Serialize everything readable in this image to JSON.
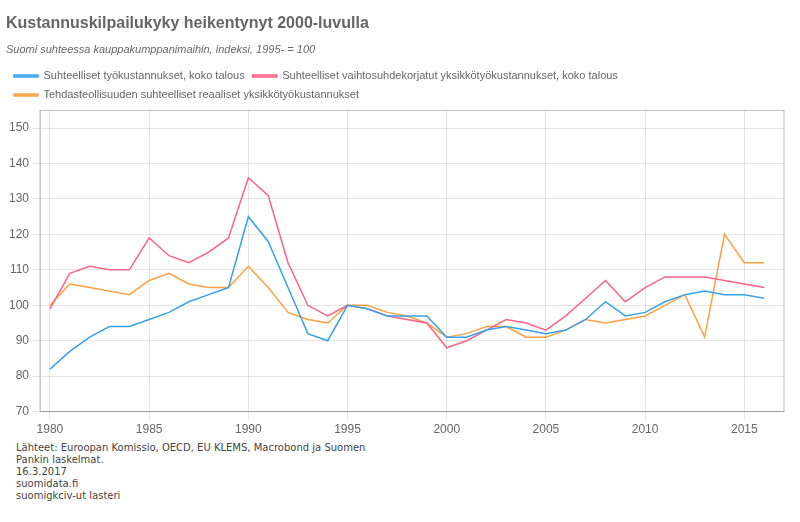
{
  "chart_data": {
    "type": "line",
    "title": "Kustannuskilpailukyky heikentynyt 2000-luvulla",
    "subtitle": "Suomi suhteessa kauppakumppanimaihin, indeksi, 1995- = 100",
    "annotations": [
      "Lähteet: Euroopan Komissio, OECD, EU KLEMS, Macrobond ja Suomen\nPankin laskelmat.",
      "16.3.2017",
      "suomidata.fi",
      "suomigkciv-ut lasteri"
    ],
    "x": [
      1980,
      1981,
      1982,
      1983,
      1984,
      1985,
      1986,
      1987,
      1988,
      1989,
      1990,
      1991,
      1992,
      1993,
      1994,
      1995,
      1996,
      1997,
      1998,
      1999,
      2000,
      2001,
      2002,
      2003,
      2004,
      2005,
      2006,
      2007,
      2008,
      2009,
      2010,
      2011,
      2012,
      2013,
      2014,
      2015,
      2016
    ],
    "series": [
      {
        "name": "Suhteelliset työkustannukset, koko talous",
        "values": [
          82,
          87,
          91,
          94,
          94,
          96,
          98,
          101,
          103,
          105,
          125,
          118,
          105,
          92,
          90,
          100,
          99,
          97,
          97,
          97,
          91,
          91,
          93,
          94,
          93,
          92,
          93,
          96,
          101,
          97,
          98,
          101,
          103,
          104,
          103,
          103,
          102
        ]
      },
      {
        "name": "Suhteelliset vaihtosuhdekorjatut yksikkötyökustannukset, koko talous",
        "values": [
          99,
          109,
          111,
          110,
          110,
          119,
          114,
          112,
          115,
          119,
          136,
          131,
          112,
          100,
          97,
          100,
          99,
          97,
          96,
          95,
          88,
          90,
          93,
          96,
          95,
          93,
          97,
          102,
          107,
          101,
          105,
          108,
          108,
          108,
          107,
          106,
          105
        ]
      },
      {
        "name": "Tehdasteollisuuden suhteelliset reaaliset yksikkötyökustannukset",
        "values": [
          100,
          106,
          105,
          104,
          103,
          107,
          109,
          106,
          105,
          105,
          111,
          105,
          98,
          96,
          95,
          100,
          100,
          98,
          97,
          95,
          91,
          92,
          94,
          94,
          91,
          91,
          93,
          96,
          95,
          96,
          97,
          100,
          103,
          91,
          120,
          112,
          112
        ]
      }
    ],
    "xlim": [
      1979.5,
      2017
    ],
    "xticks": [
      1980,
      1985,
      1990,
      1995,
      2000,
      2005,
      2010,
      2015
    ],
    "ylim": [
      70,
      155
    ],
    "yticks": [
      70,
      80,
      90,
      100,
      110,
      120,
      130,
      140,
      150
    ],
    "grid": true,
    "legend": "top"
  }
}
